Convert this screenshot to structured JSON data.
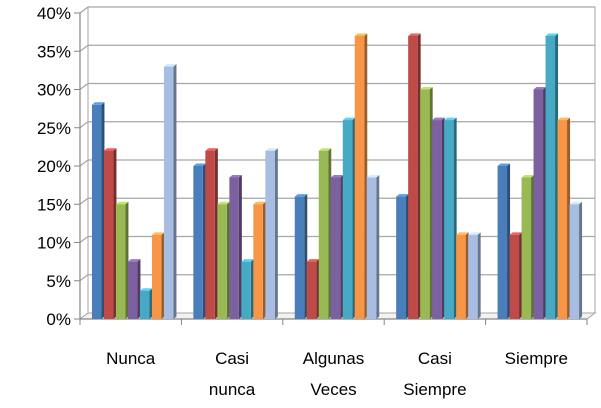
{
  "chart_data": {
    "type": "bar",
    "title": "",
    "xlabel": "",
    "ylabel": "",
    "ylim": [
      0,
      40
    ],
    "y_tick_step": 5,
    "y_tick_format": "percent",
    "grid": true,
    "legend": "none",
    "style": "3d-clustered",
    "categories": [
      [
        "Nunca"
      ],
      [
        "Casi",
        "nunca"
      ],
      [
        "Algunas",
        "Veces"
      ],
      [
        "Casi",
        "Siempre"
      ],
      [
        "Siempre"
      ]
    ],
    "series": [
      {
        "color": "#4a7ebb",
        "values": [
          28,
          20,
          16,
          16,
          20
        ]
      },
      {
        "color": "#be4b48",
        "values": [
          22,
          22,
          7.5,
          37,
          11
        ]
      },
      {
        "color": "#98b954",
        "values": [
          15,
          15,
          22,
          30,
          18.5
        ]
      },
      {
        "color": "#7d60a0",
        "values": [
          7.5,
          18.5,
          18.5,
          26,
          30
        ]
      },
      {
        "color": "#46aac5",
        "values": [
          3.7,
          7.5,
          26,
          26,
          37
        ]
      },
      {
        "color": "#f79646",
        "values": [
          11,
          15,
          37,
          11,
          26
        ]
      },
      {
        "color": "#a7bde2",
        "values": [
          33,
          22,
          18.5,
          11,
          15
        ]
      }
    ]
  }
}
